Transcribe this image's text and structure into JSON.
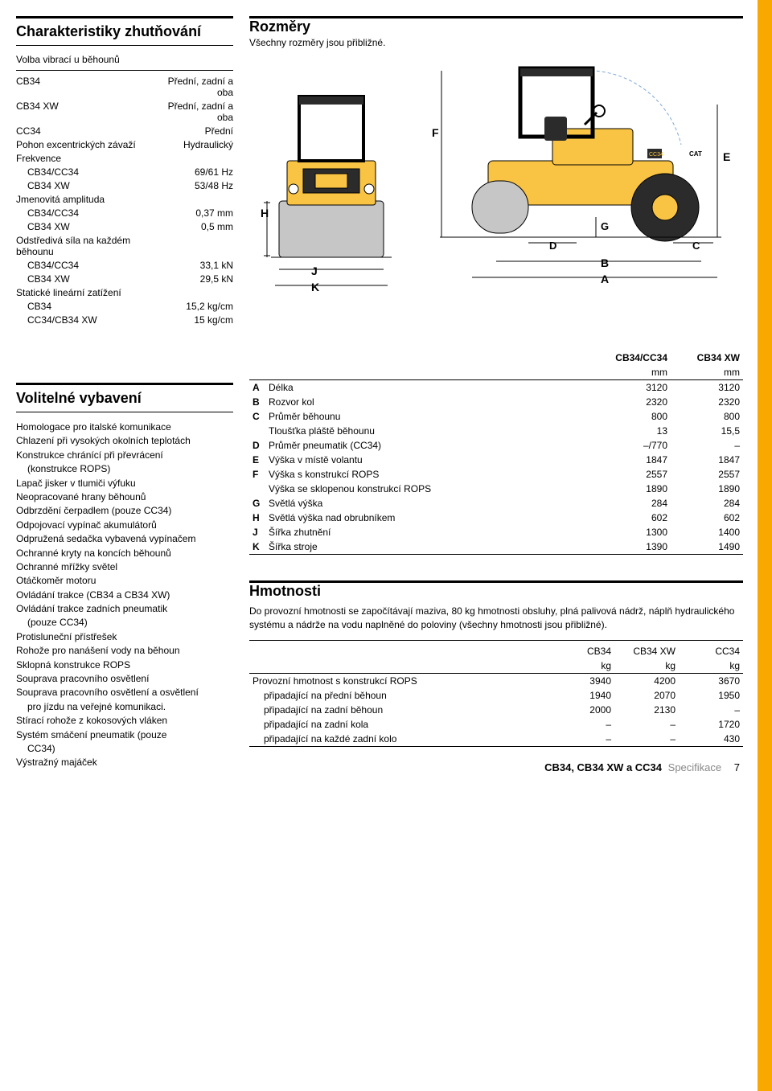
{
  "sections": {
    "char": {
      "title": "Charakteristiky zhutňování",
      "sub_title": "Volba vibrací u běhounů"
    },
    "dims": {
      "title": "Rozměry",
      "sub": "Všechny rozměry jsou přibližné."
    },
    "opt": {
      "title": "Volitelné vybavení"
    },
    "weights": {
      "title": "Hmotnosti",
      "intro": "Do provozní hmotnosti se započítávají maziva, 80 kg hmotnosti obsluhy, plná palivová nádrž, náplň hydraulického systému a nádrže na vodu naplněné do poloviny (všechny hmotnosti jsou přibližné)."
    }
  },
  "char_table": [
    [
      "CB34",
      "Přední, zadní a oba"
    ],
    [
      "CB34 XW",
      "Přední, zadní a oba"
    ],
    [
      "CC34",
      "Přední"
    ],
    [
      "Pohon excentrických závaží",
      "Hydraulický"
    ],
    [
      "Frekvence",
      ""
    ],
    [
      "CB34/CC34",
      "69/61 Hz",
      true
    ],
    [
      "CB34 XW",
      "53/48 Hz",
      true
    ],
    [
      "Jmenovitá amplituda",
      ""
    ],
    [
      "CB34/CC34",
      "0,37 mm",
      true
    ],
    [
      "CB34 XW",
      "0,5 mm",
      true
    ],
    [
      "Odstředivá síla na každém běhounu",
      ""
    ],
    [
      "CB34/CC34",
      "33,1 kN",
      true
    ],
    [
      "CB34 XW",
      "29,5 kN",
      true
    ],
    [
      "Statické lineární zatížení",
      ""
    ],
    [
      "CB34",
      "15,2 kg/cm",
      true
    ],
    [
      "CC34/CB34 XW",
      "15 kg/cm",
      true
    ]
  ],
  "dim_cols": [
    "CB34/CC34",
    "CB34 XW"
  ],
  "dim_unit": "mm",
  "dim_rows": [
    [
      "A",
      "Délka",
      "3120",
      "3120"
    ],
    [
      "B",
      "Rozvor kol",
      "2320",
      "2320"
    ],
    [
      "C",
      "Průměr běhounu",
      "800",
      "800"
    ],
    [
      "",
      "Tloušťka pláště běhounu",
      "13",
      "15,5"
    ],
    [
      "D",
      "Průměr pneumatik (CC34)",
      "–/770",
      "–"
    ],
    [
      "E",
      "Výška v místě volantu",
      "1847",
      "1847"
    ],
    [
      "F",
      "Výška s konstrukcí ROPS",
      "2557",
      "2557"
    ],
    [
      "",
      "Výška se sklopenou konstrukcí ROPS",
      "1890",
      "1890"
    ],
    [
      "G",
      "Světlá výška",
      "284",
      "284"
    ],
    [
      "H",
      "Světlá výška nad obrubníkem",
      "602",
      "602"
    ],
    [
      "J",
      "Šířka zhutnění",
      "1300",
      "1400"
    ],
    [
      "K",
      "Šířka stroje",
      "1390",
      "1490"
    ]
  ],
  "opt_items": [
    "Homologace pro italské komunikace",
    "Chlazení při vysokých okolních teplotách",
    "Konstrukce chránící při převrácení",
    "  (konstrukce ROPS)",
    "Lapač jisker v tlumiči výfuku",
    "Neopracované hrany běhounů",
    "Odbrzdění čerpadlem (pouze CC34)",
    "Odpojovací vypínač akumulátorů",
    "Odpružená sedačka vybavená vypínačem",
    "Ochranné kryty na koncích běhounů",
    "Ochranné mřížky světel",
    "Otáčkoměr motoru",
    "Ovládání trakce (CB34 a CB34 XW)",
    "Ovládání trakce zadních pneumatik",
    "  (pouze CC34)",
    "Protisluneční přístřešek",
    "Rohože pro nanášení vody na běhoun",
    "Sklopná konstrukce ROPS",
    "Souprava pracovního osvětlení",
    "Souprava pracovního osvětlení a osvětlení",
    "  pro jízdu na veřejné komunikaci.",
    "Stírací rohože z kokosových vláken",
    "Systém smáčení pneumatik (pouze",
    "  CC34)",
    "Výstražný majáček"
  ],
  "wt_cols": [
    "CB34",
    "CB34 XW",
    "CC34"
  ],
  "wt_unit": "kg",
  "wt_rows": [
    [
      "Provozní hmotnost s konstrukcí ROPS",
      "3940",
      "4200",
      "3670"
    ],
    [
      "  připadající na přední běhoun",
      "1940",
      "2070",
      "1950"
    ],
    [
      "  připadající na zadní běhoun",
      "2000",
      "2130",
      "–"
    ],
    [
      "  připadající na zadní kola",
      "–",
      "–",
      "1720"
    ],
    [
      "  připadající na každé zadní kolo",
      "–",
      "–",
      "430"
    ]
  ],
  "footer": {
    "spec": "CB34, CB34 XW a CC34",
    "label": "Specifikace",
    "page": "7"
  },
  "diagram": {
    "labels": {
      "A": "A",
      "B": "B",
      "C": "C",
      "D": "D",
      "E": "E",
      "F": "F",
      "G": "G",
      "H": "H",
      "J": "J",
      "K": "K"
    },
    "colors": {
      "body": "#f9c443",
      "dark": "#2b2b2b",
      "accent": "#e6a617",
      "line": "#000",
      "steel": "#c6c6c6"
    }
  }
}
